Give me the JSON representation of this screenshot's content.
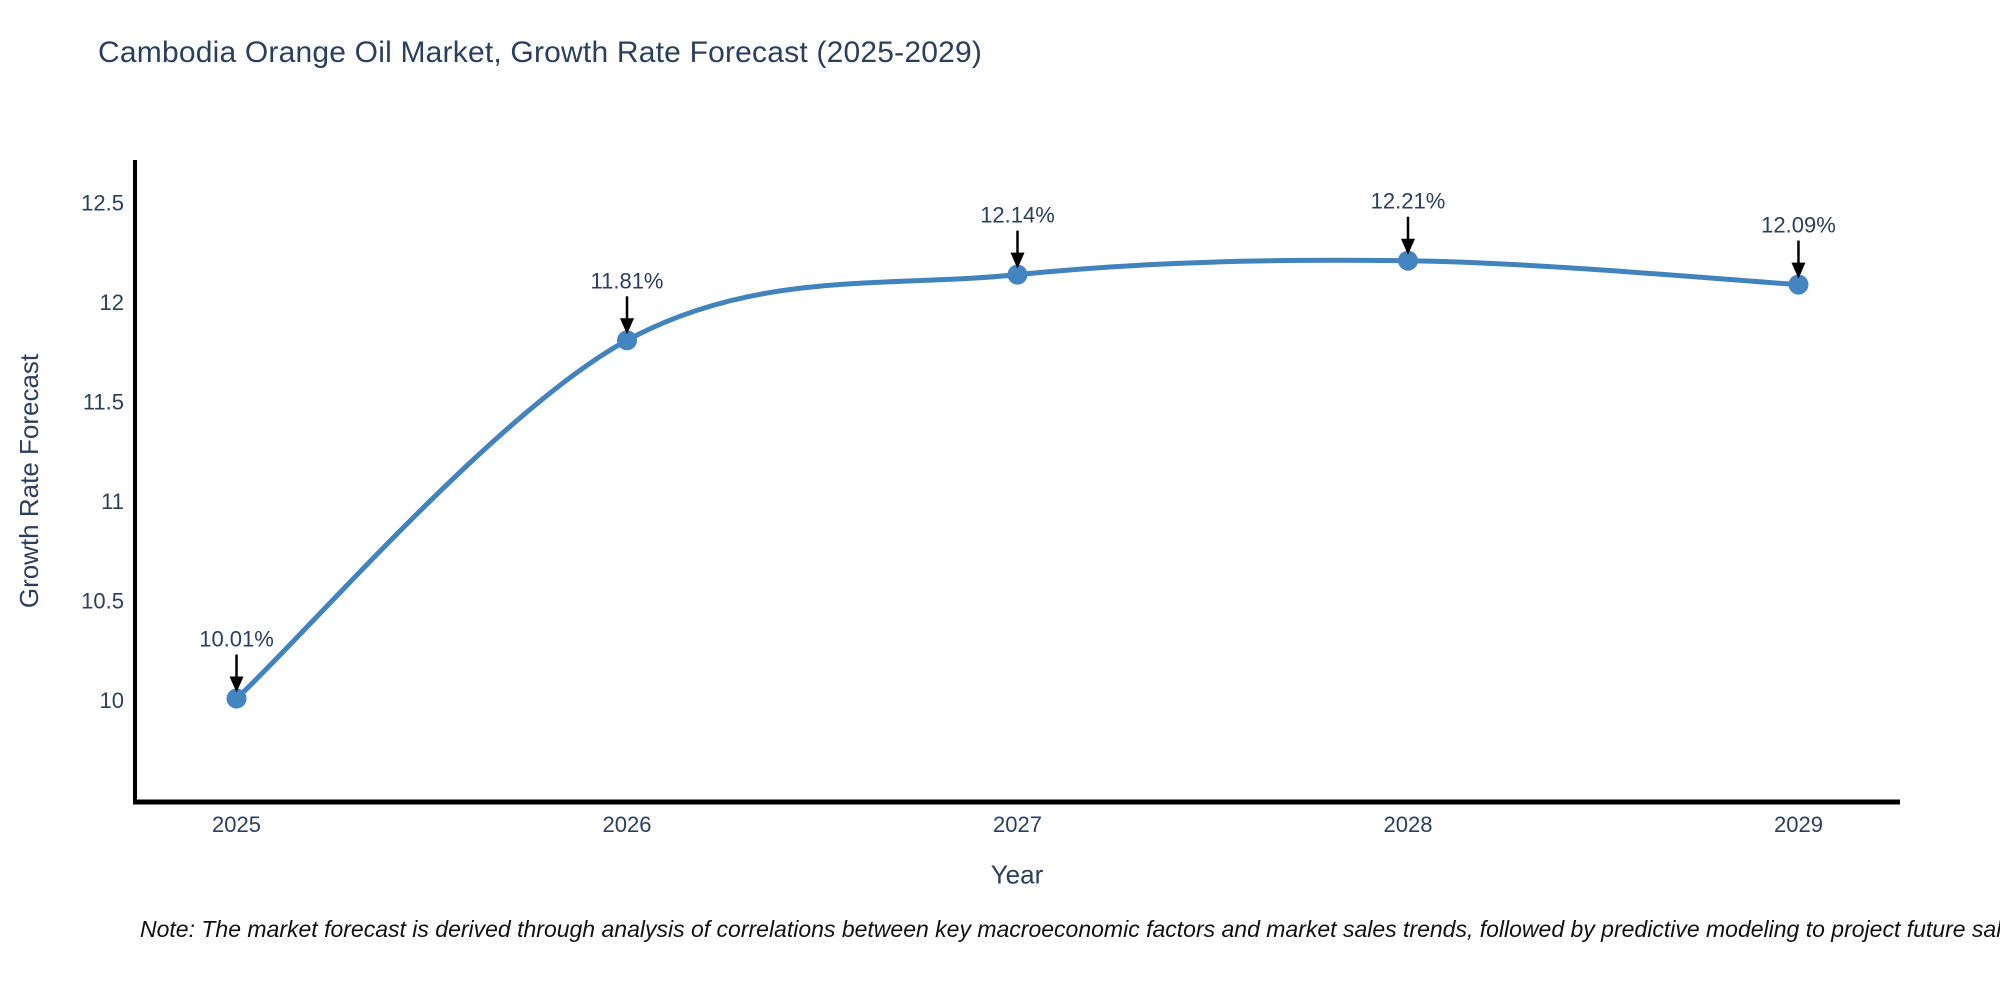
{
  "title": "Cambodia Orange Oil Market, Growth Rate Forecast (2025-2029)",
  "note": "Note: The market forecast is derived through analysis of correlations between key macroeconomic factors and market sales trends, followed by predictive modeling to project future sal",
  "chart_data": {
    "type": "line",
    "title": "Cambodia Orange Oil Market, Growth Rate Forecast (2025-2029)",
    "xlabel": "Year",
    "ylabel": "Growth Rate Forecast",
    "x": [
      2025,
      2026,
      2027,
      2028,
      2029
    ],
    "series": [
      {
        "name": "Growth Rate Forecast",
        "values": [
          10.01,
          11.81,
          12.14,
          12.21,
          12.09
        ]
      }
    ],
    "point_labels": [
      "10.01%",
      "11.81%",
      "12.14%",
      "12.21%",
      "12.09%"
    ],
    "xticks": [
      "2025",
      "2026",
      "2027",
      "2028",
      "2029"
    ],
    "yticks": [
      10,
      10.5,
      11,
      11.5,
      12,
      12.5
    ],
    "xlim": [
      2024.74,
      2029.26
    ],
    "ylim": [
      9.49,
      12.716
    ],
    "grid": false,
    "legend": false,
    "line_shape": "spline",
    "colors": {
      "line": "#4183bd",
      "marker": "#4285c0",
      "axis": "#000000",
      "tick_text": "#2a3f5f",
      "annotation_text": "#2a3f5f",
      "arrow": "#000000",
      "background": "#ffffff"
    }
  }
}
